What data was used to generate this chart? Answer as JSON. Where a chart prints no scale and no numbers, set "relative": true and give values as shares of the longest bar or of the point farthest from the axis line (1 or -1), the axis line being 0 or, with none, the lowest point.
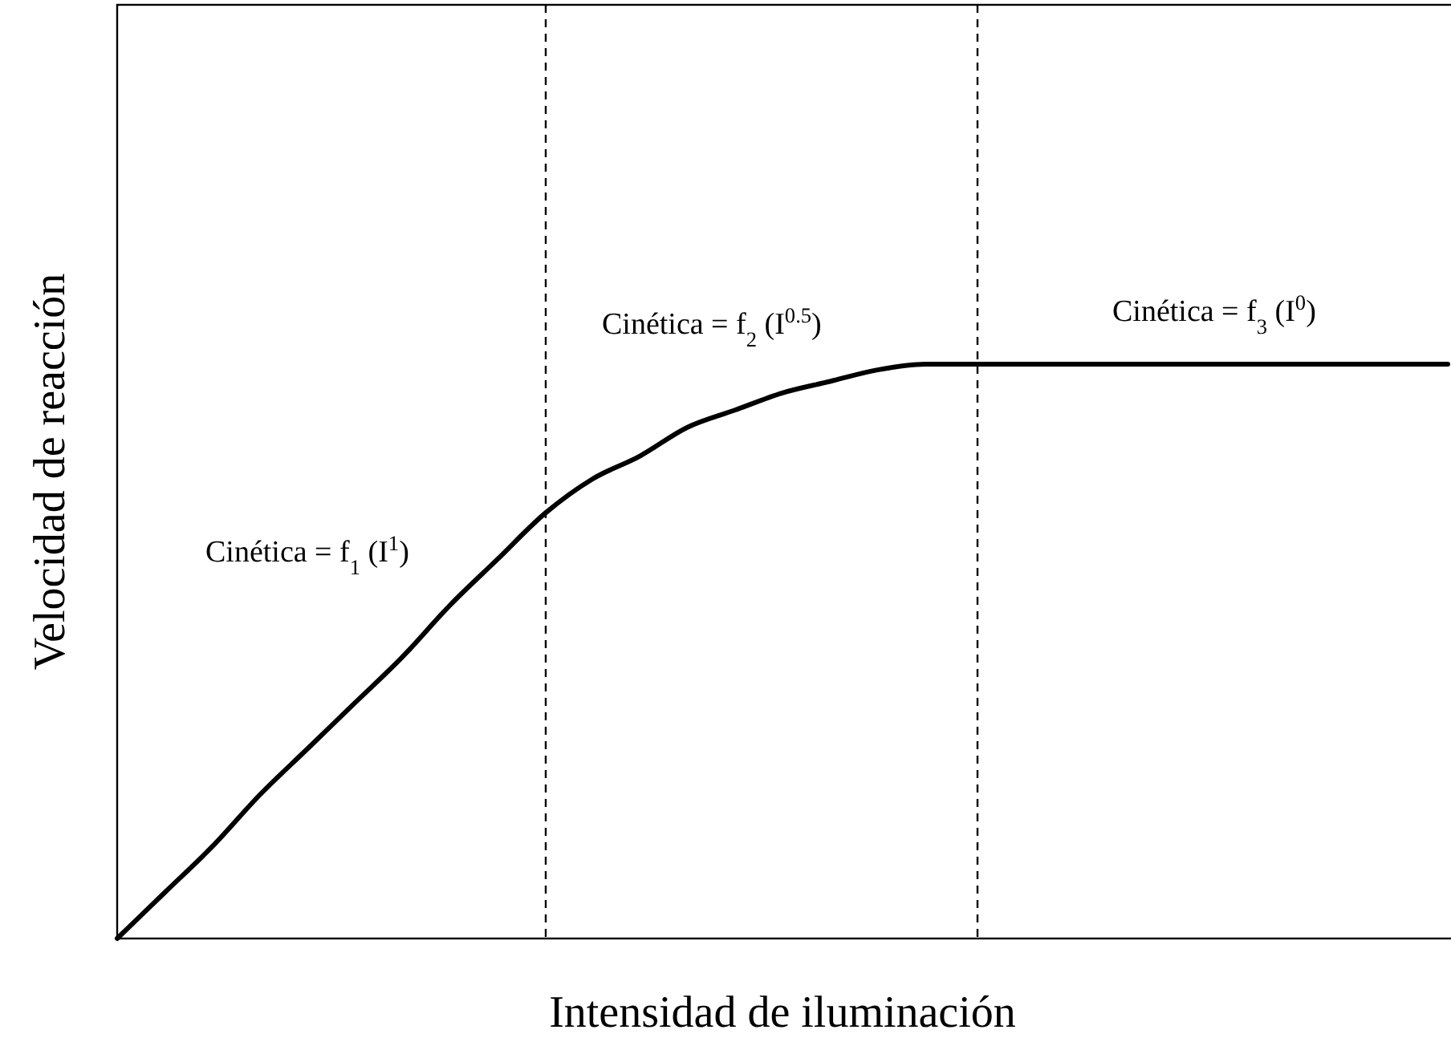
{
  "chart_data": {
    "type": "line",
    "relative": true,
    "xlabel": "Intensidad de iluminación",
    "ylabel": "Velocidad de reacción",
    "categories": [
      null,
      null,
      null,
      null,
      null,
      null,
      null,
      null,
      null,
      null,
      null,
      null,
      null,
      null,
      null,
      null,
      null,
      null,
      null,
      null,
      null,
      null,
      null,
      null,
      null,
      null,
      null,
      null,
      null
    ],
    "series": [
      {
        "color": "#000000",
        "values": [
          0,
          0.08,
          0.16,
          0.25,
          0.33,
          0.41,
          0.49,
          0.58,
          0.66,
          0.74,
          0.8,
          0.84,
          0.89,
          0.92,
          0.95,
          0.97,
          0.99,
          1,
          1,
          1,
          1,
          1,
          1,
          1,
          1,
          1,
          1,
          1,
          1
        ]
      }
    ],
    "annotations": [
      "Cinética = f$_{1}$ (I$^{1}$)",
      "Cinética = f$_{2}$ (I$^{0.5}$)",
      "Cinética = f$_{3}$ (I$^{0}$)"
    ],
    "line_style": "solid",
    "marker": "none"
  }
}
